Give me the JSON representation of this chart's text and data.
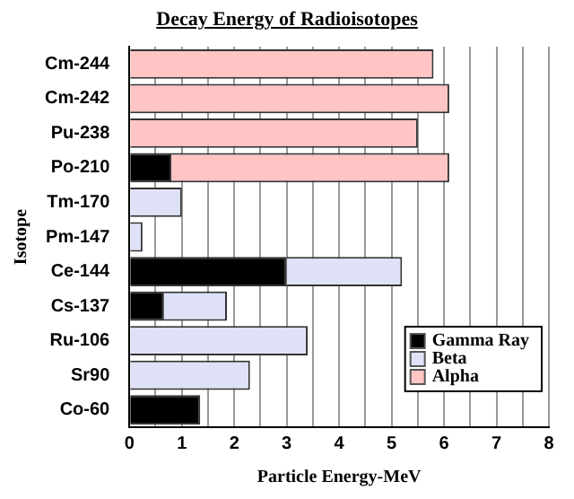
{
  "chart_data": {
    "type": "bar",
    "title": "Decay Energy of Radioisotopes",
    "xlabel": "Particle Energy-MeV",
    "ylabel": "Isotope",
    "orientation": "horizontal",
    "stacked": true,
    "categories": [
      "Cm-244",
      "Cm-242",
      "Pu-238",
      "Po-210",
      "Tm-170",
      "Pm-147",
      "Ce-144",
      "Cs-137",
      "Ru-106",
      "Sr90",
      "Co-60"
    ],
    "series": [
      {
        "name": "Gamma Ray",
        "color": "#000000",
        "values": [
          null,
          null,
          null,
          0.8,
          null,
          null,
          3.0,
          0.66,
          null,
          null,
          1.35
        ]
      },
      {
        "name": "Beta",
        "color": "#dfe2f7",
        "values": [
          null,
          null,
          null,
          null,
          1.0,
          0.25,
          2.2,
          1.2,
          3.4,
          2.3,
          null
        ]
      },
      {
        "name": "Alpha",
        "color": "#ffc4c4",
        "values": [
          5.8,
          6.1,
          5.5,
          5.3,
          null,
          null,
          null,
          null,
          null,
          null,
          null
        ]
      }
    ],
    "xlim": [
      0,
      8
    ],
    "xticks": [
      0,
      {
        "value": 0.5,
        "label": null
      },
      1,
      {
        "value": 1.5,
        "label": null
      },
      2,
      {
        "value": 2.5,
        "label": null
      },
      3,
      {
        "value": 3.5,
        "label": null
      },
      4,
      {
        "value": 4.5,
        "label": null
      },
      5,
      {
        "value": 5.5,
        "label": null
      },
      6,
      {
        "value": 6.5,
        "label": null
      },
      7,
      {
        "value": 7.5,
        "label": null
      },
      8
    ],
    "grid": "x",
    "legend": "bottom right"
  }
}
